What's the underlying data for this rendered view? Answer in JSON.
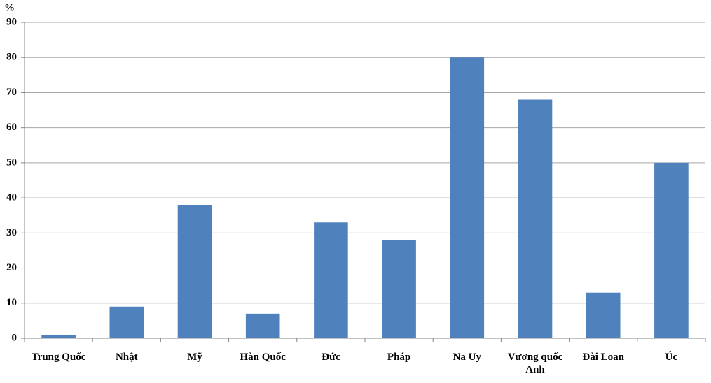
{
  "chart_data": {
    "type": "bar",
    "ylabel": "%",
    "categories": [
      "Trung Quốc",
      "Nhật",
      "Mỹ",
      "Hàn Quốc",
      "Đức",
      "Pháp",
      "Na Uy",
      "Vương quốc Anh",
      "Đài Loan",
      "Úc"
    ],
    "values": [
      1,
      9,
      38,
      7,
      33,
      28,
      80,
      68,
      13,
      50
    ],
    "color": "#4f81bd",
    "ylim": [
      0,
      90
    ],
    "yticks": [
      0,
      10,
      20,
      30,
      40,
      50,
      60,
      70,
      80,
      90
    ],
    "grid": true
  }
}
